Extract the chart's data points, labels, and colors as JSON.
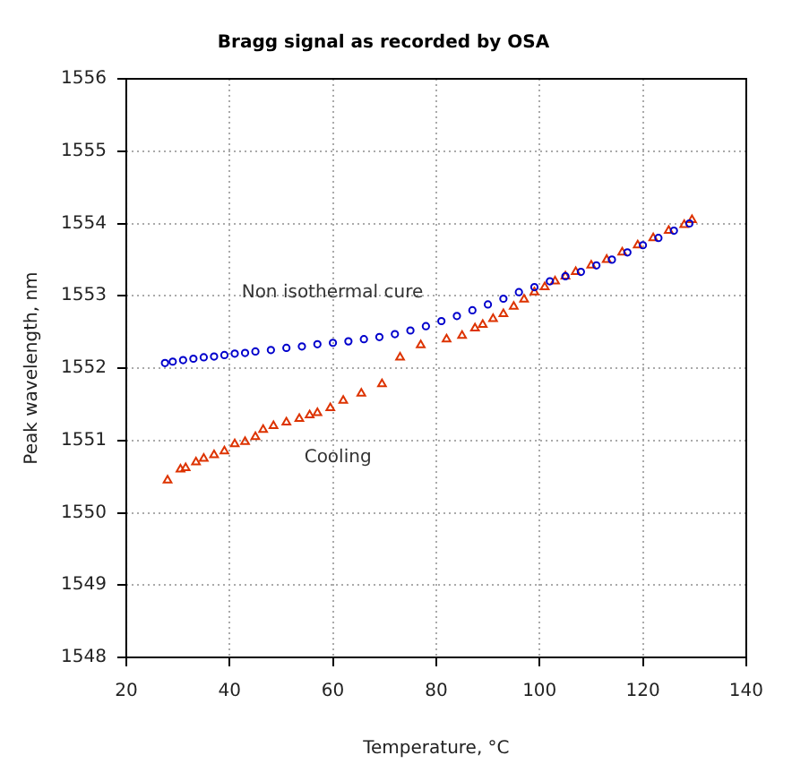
{
  "chart_data": {
    "type": "scatter",
    "title": "Bragg signal as recorded by OSA",
    "xlabel": "Temperature, °C",
    "ylabel": "Peak wavelength, nm",
    "xlim": [
      20,
      140
    ],
    "xticks": [
      20,
      40,
      60,
      80,
      100,
      120,
      140
    ],
    "ylim": [
      1548,
      1556
    ],
    "yticks": [
      1548,
      1549,
      1550,
      1551,
      1552,
      1553,
      1554,
      1555,
      1556
    ],
    "grid": true,
    "legend": false,
    "series": [
      {
        "name": "Non isothermal cure",
        "color": "#0000cc",
        "marker": "circle",
        "x": [
          27.5,
          29,
          31,
          33,
          35,
          37,
          39,
          41,
          43,
          45,
          48,
          51,
          54,
          57,
          60,
          63,
          66,
          69,
          72,
          75,
          78,
          81,
          84,
          87,
          90,
          93,
          96,
          99,
          102,
          105,
          108,
          111,
          114,
          117,
          120,
          123,
          126,
          129
        ],
        "values": [
          1552.07,
          1552.09,
          1552.11,
          1552.13,
          1552.15,
          1552.16,
          1552.18,
          1552.2,
          1552.21,
          1552.23,
          1552.25,
          1552.28,
          1552.3,
          1552.33,
          1552.35,
          1552.37,
          1552.4,
          1552.43,
          1552.47,
          1552.52,
          1552.58,
          1552.65,
          1552.72,
          1552.8,
          1552.88,
          1552.96,
          1553.05,
          1553.12,
          1553.2,
          1553.27,
          1553.33,
          1553.42,
          1553.5,
          1553.6,
          1553.7,
          1553.8,
          1553.9,
          1554.0
        ]
      },
      {
        "name": "Cooling",
        "color": "#dd3300",
        "marker": "triangle",
        "x": [
          28,
          30.5,
          31.5,
          33.5,
          35,
          37,
          39,
          41,
          43,
          45,
          46.5,
          48.5,
          51,
          53.5,
          55.5,
          57,
          59.5,
          62,
          65.5,
          69.5,
          73,
          77,
          82,
          85,
          87.5,
          89,
          91,
          93,
          95,
          97,
          99,
          101,
          103,
          105,
          107,
          110,
          113,
          116,
          119,
          122,
          125,
          128,
          129.5
        ],
        "values": [
          1550.45,
          1550.6,
          1550.62,
          1550.7,
          1550.75,
          1550.8,
          1550.85,
          1550.95,
          1550.98,
          1551.05,
          1551.15,
          1551.2,
          1551.25,
          1551.3,
          1551.35,
          1551.38,
          1551.45,
          1551.55,
          1551.65,
          1551.78,
          1552.15,
          1552.32,
          1552.4,
          1552.45,
          1552.55,
          1552.6,
          1552.68,
          1552.75,
          1552.85,
          1552.95,
          1553.05,
          1553.12,
          1553.2,
          1553.27,
          1553.33,
          1553.42,
          1553.5,
          1553.6,
          1553.7,
          1553.8,
          1553.9,
          1553.98,
          1554.05
        ]
      }
    ]
  }
}
